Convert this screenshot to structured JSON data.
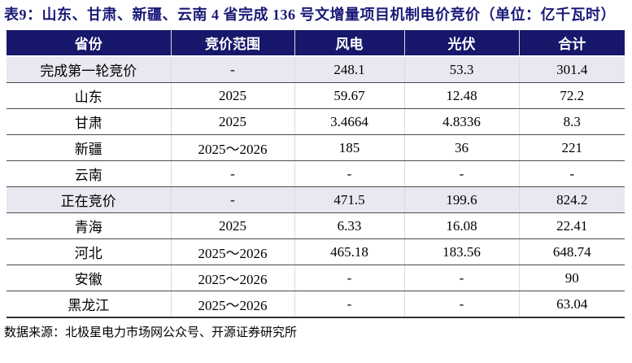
{
  "title": "表9：山东、甘肃、新疆、云南 4 省完成 136 号文增量项目机制电价竞价（单位：亿千瓦时）",
  "table": {
    "columns": [
      "省份",
      "竞价范围",
      "风电",
      "光伏",
      "合计"
    ],
    "rows": [
      {
        "cells": [
          "完成第一轮竞价",
          "-",
          "248.1",
          "53.3",
          "301.4"
        ],
        "highlight": true
      },
      {
        "cells": [
          "山东",
          "2025",
          "59.67",
          "12.48",
          "72.2"
        ],
        "highlight": false
      },
      {
        "cells": [
          "甘肃",
          "2025",
          "3.4664",
          "4.8336",
          "8.3"
        ],
        "highlight": false
      },
      {
        "cells": [
          "新疆",
          "2025～2026",
          "185",
          "36",
          "221"
        ],
        "highlight": false
      },
      {
        "cells": [
          "云南",
          "-",
          "-",
          "-",
          "-"
        ],
        "highlight": false
      },
      {
        "cells": [
          "正在竞价",
          "-",
          "471.5",
          "199.6",
          "824.2"
        ],
        "highlight": true
      },
      {
        "cells": [
          "青海",
          "2025",
          "6.33",
          "16.08",
          "22.41"
        ],
        "highlight": false
      },
      {
        "cells": [
          "河北",
          "2025～2026",
          "465.18",
          "183.56",
          "648.74"
        ],
        "highlight": false
      },
      {
        "cells": [
          "安徽",
          "2025～2026",
          "-",
          "-",
          "90"
        ],
        "highlight": false
      },
      {
        "cells": [
          "黑龙江",
          "2025～2026",
          "-",
          "-",
          "63.04"
        ],
        "highlight": false
      }
    ]
  },
  "source": "数据来源：北极星电力市场网公众号、开源证券研究所",
  "colors": {
    "header_bg": "#17176b",
    "title_text": "#1a1a78",
    "highlight_row_bg": "#e8e8f1",
    "row_divider": "#4b4b4b"
  }
}
